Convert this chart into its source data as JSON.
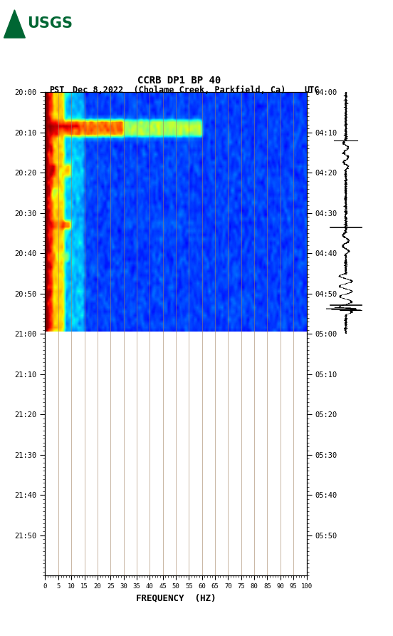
{
  "title_line1": "CCRB DP1 BP 40",
  "title_line2_left": "PST",
  "title_line2_mid": "Dec 8,2022  (Cholame Creek, Parkfield, Ca)",
  "title_line2_right": "UTC",
  "freq_min": 0,
  "freq_max": 100,
  "xlabel": "FREQUENCY  (HZ)",
  "pst_ticks": [
    "20:00",
    "20:10",
    "20:20",
    "20:30",
    "20:40",
    "20:50",
    "21:00",
    "21:10",
    "21:20",
    "21:30",
    "21:40",
    "21:50"
  ],
  "utc_ticks": [
    "04:00",
    "04:10",
    "04:20",
    "04:30",
    "04:40",
    "04:50",
    "05:00",
    "05:10",
    "05:20",
    "05:30",
    "05:40",
    "05:50"
  ],
  "freq_ticks": [
    0,
    5,
    10,
    15,
    20,
    25,
    30,
    35,
    40,
    45,
    50,
    55,
    60,
    65,
    70,
    75,
    80,
    85,
    90,
    95,
    100
  ],
  "n_time_rows": 120,
  "n_freq_cols": 200,
  "active_rows": 60,
  "background_color": "#ffffff",
  "fig_width": 5.52,
  "fig_height": 8.92,
  "usgs_color": "#006633",
  "vline_color": "#a08060",
  "vline_alpha": 0.8,
  "waveform_color": "#000000"
}
